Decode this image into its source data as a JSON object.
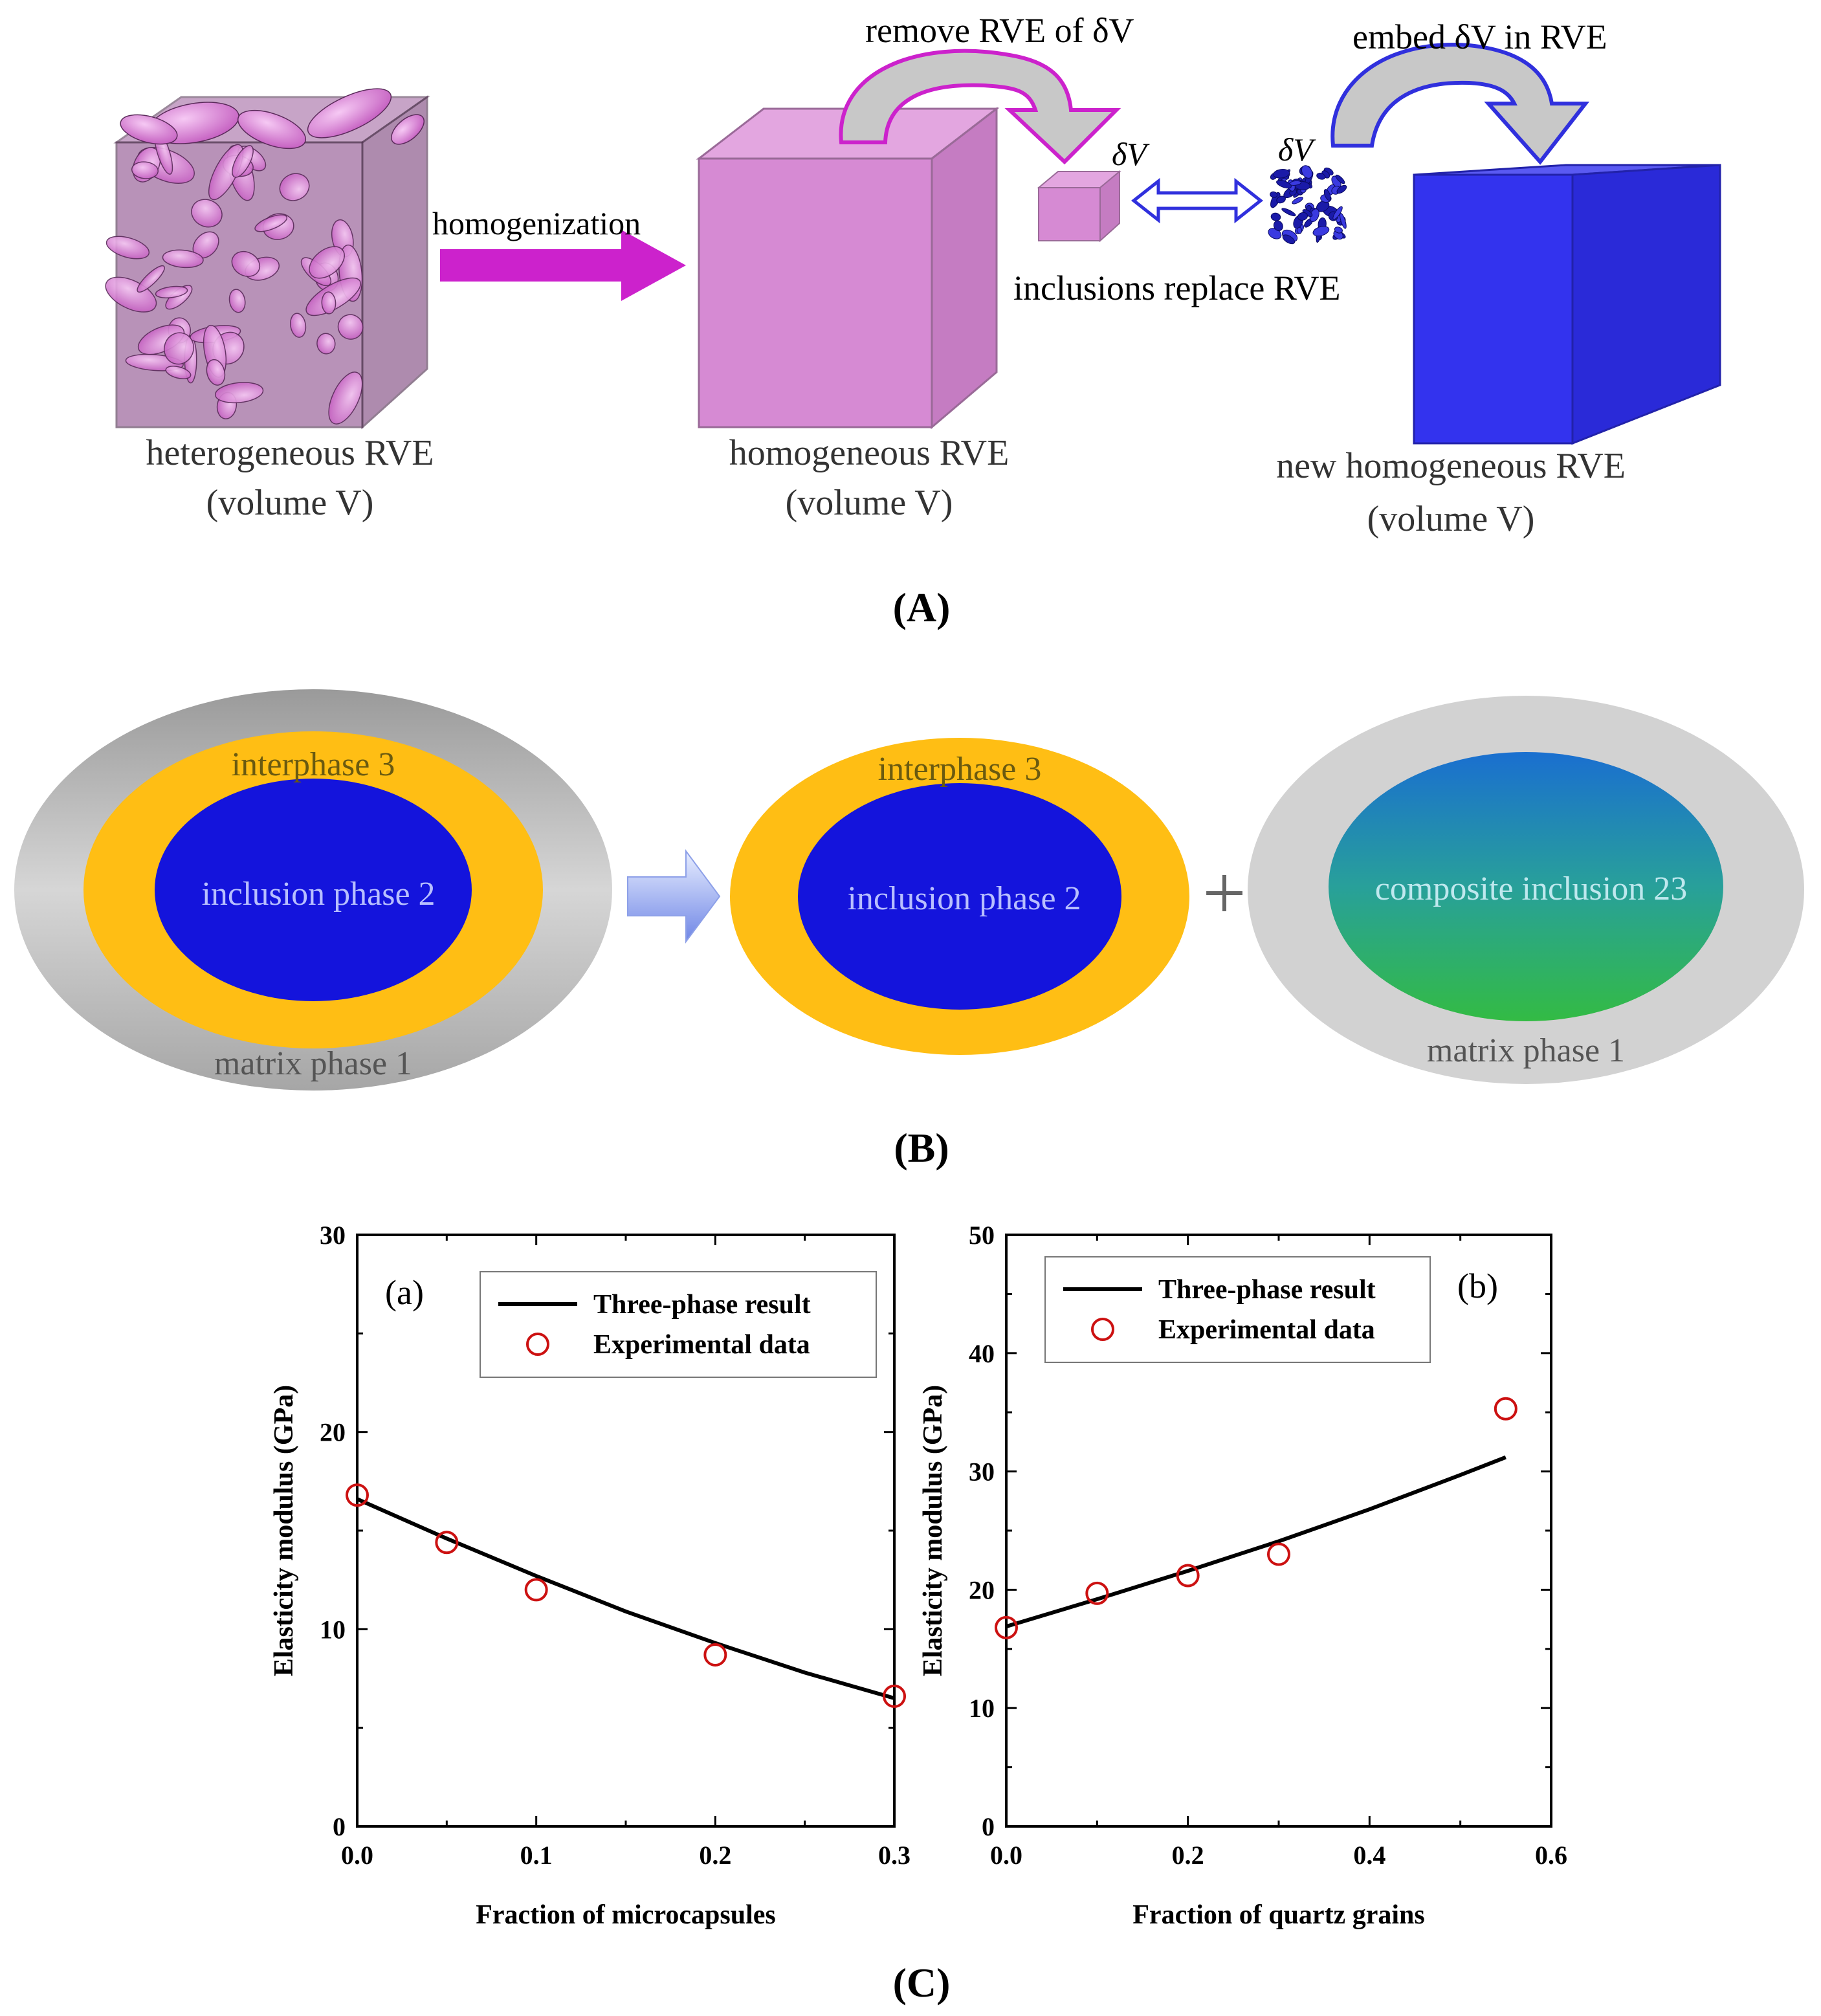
{
  "panel_a": {
    "label": "(A)",
    "homogenization_label": "homogenization",
    "remove_label": "remove RVE of δV",
    "embed_label": "embed δV in RVE",
    "delta_v_left": "δV",
    "delta_v_right": "δV",
    "replace_label": "inclusions replace RVE",
    "hetero_label_1": "heterogeneous RVE",
    "hetero_label_2": "(volume V)",
    "homo_label_1": "homogeneous RVE",
    "homo_label_2": "(volume V)",
    "new_homo_label_1": "new homogeneous RVE",
    "new_homo_label_2": "(volume V)",
    "colors": {
      "magenta": "#cc22cc",
      "pink_cube": "#d98ad6",
      "blue_cube": "#3333ee",
      "arrow_grey": "#c8c8c8"
    }
  },
  "panel_b": {
    "label": "(B)",
    "left": {
      "interphase": "interphase 3",
      "inclusion": "inclusion phase 2",
      "matrix": "matrix phase 1"
    },
    "middle": {
      "interphase": "interphase 3",
      "inclusion": "inclusion phase 2"
    },
    "plus": "+",
    "right": {
      "composite": "composite inclusion 23",
      "matrix": "matrix phase 1"
    },
    "colors": {
      "matrix_grey": "#b4b4b4",
      "interphase_yellow": "#ffbe14",
      "inclusion_blue": "#1414dc",
      "composite_top": "#1a7acb",
      "composite_bottom": "#30b84c"
    }
  },
  "panel_c": {
    "label": "(C)"
  },
  "chart_data": [
    {
      "type": "line",
      "panel_tag": "(a)",
      "xlabel": "Fraction of microcapsules",
      "ylabel": "Elasticity modulus (GPa)",
      "xlim": [
        0,
        0.3
      ],
      "ylim": [
        0,
        30
      ],
      "xticks": [
        "0.0",
        "0.1",
        "0.2",
        "0.3"
      ],
      "yticks": [
        "0",
        "10",
        "20",
        "30"
      ],
      "legend_placement": "top-right",
      "series": [
        {
          "name": "Three-phase  result",
          "style": "line",
          "x": [
            0,
            0.05,
            0.1,
            0.15,
            0.2,
            0.25,
            0.3
          ],
          "y": [
            16.6,
            14.6,
            12.7,
            10.9,
            9.3,
            7.8,
            6.5
          ]
        },
        {
          "name": "Experimental data",
          "style": "circle",
          "x": [
            0,
            0.05,
            0.1,
            0.2,
            0.3
          ],
          "y": [
            16.8,
            14.4,
            12.0,
            8.7,
            6.6
          ]
        }
      ]
    },
    {
      "type": "line",
      "panel_tag": "(b)",
      "xlabel": "Fraction of quartz grains",
      "ylabel": "Elasticity modulus (GPa)",
      "xlim": [
        0,
        0.6
      ],
      "ylim": [
        0,
        50
      ],
      "xticks": [
        "0.0",
        "0.2",
        "0.4",
        "0.6"
      ],
      "yticks": [
        "0",
        "10",
        "20",
        "30",
        "40",
        "50"
      ],
      "legend_placement": "top-left",
      "series": [
        {
          "name": "Three-phase  result",
          "style": "line",
          "x": [
            0,
            0.1,
            0.2,
            0.3,
            0.4,
            0.5,
            0.55
          ],
          "y": [
            16.9,
            19.2,
            21.6,
            24.1,
            26.8,
            29.7,
            31.2
          ]
        },
        {
          "name": "Experimental data",
          "style": "circle",
          "x": [
            0,
            0.1,
            0.2,
            0.3,
            0.55
          ],
          "y": [
            16.8,
            19.7,
            21.2,
            23.0,
            35.3
          ]
        }
      ]
    }
  ]
}
